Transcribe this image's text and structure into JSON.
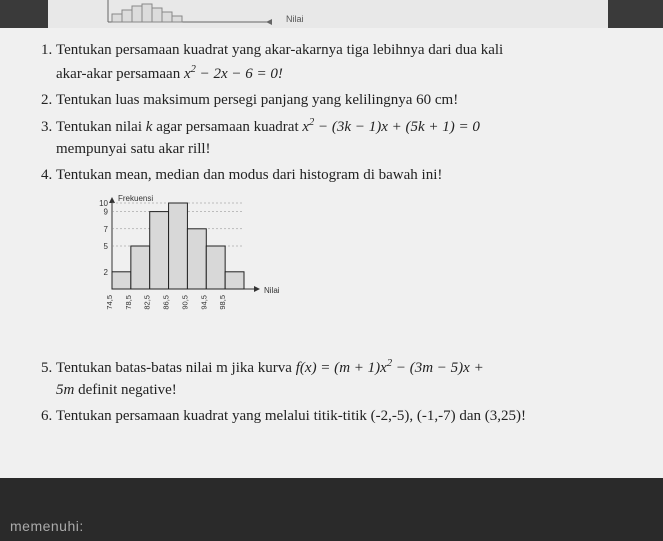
{
  "top_thumb_label": "Nilai",
  "questions": {
    "q1a": "Tentukan persamaan kuadrat yang akar-akarnya tiga lebihnya dari dua kali",
    "q1b": "akar-akar persamaan ",
    "q1eq": "x² − 2x − 6 = 0!",
    "q2": "Tentukan luas maksimum persegi panjang yang kelilingnya 60 cm!",
    "q3a": "Tentukan nilai ",
    "q3k": "k",
    "q3b": " agar persamaan kuadrat ",
    "q3eq": "x² − (3k − 1)x + (5k + 1) = 0",
    "q3c": "mempunyai satu akar rill!",
    "q4": "Tentukan mean, median dan modus dari histogram di bawah ini!",
    "q5a": "Tentukan batas-batas nilai m jika kurva ",
    "q5eq": "f(x) = (m + 1)x² − (3m − 5)x +",
    "q5b": "5m",
    "q5c": " definit negative!",
    "q6": "Tentukan persamaan kuadrat yang melalui titik-titik (-2,-5), (-1,-7) dan (3,25)!"
  },
  "histogram": {
    "ylabel": "Frekuensi",
    "xlabel": "Nilai",
    "yticks": [
      2,
      5,
      7,
      9,
      10
    ],
    "xticks": [
      "74,5",
      "78,5",
      "82,5",
      "86,5",
      "90,5",
      "94,5",
      "98,5"
    ],
    "bars": [
      2,
      5,
      9,
      10,
      7,
      5,
      2
    ],
    "bar_fill": "#d8d8d8",
    "bar_stroke": "#222",
    "grid": "#888",
    "width": 190,
    "height": 130
  },
  "footer": "memenuhi:"
}
